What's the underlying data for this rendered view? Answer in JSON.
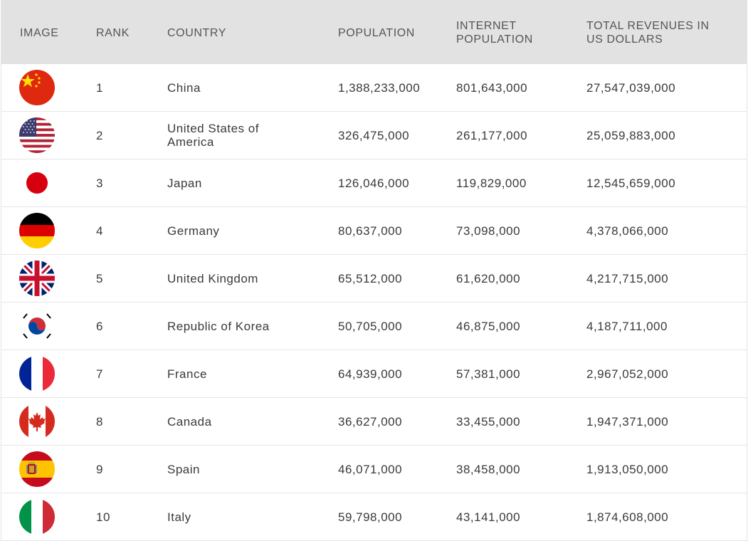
{
  "table": {
    "headers": {
      "image": "IMAGE",
      "rank": "RANK",
      "country": "COUNTRY",
      "population": "POPULATION",
      "internet_population": "INTERNET POPULATION",
      "total_revenues": "TOTAL REVENUES IN US DOLLARS"
    },
    "rows": [
      {
        "flag_icon": "china-flag-icon",
        "rank": "1",
        "country": "China",
        "population": "1,388,233,000",
        "internet_population": "801,643,000",
        "total_revenues": "27,547,039,000"
      },
      {
        "flag_icon": "usa-flag-icon",
        "rank": "2",
        "country": "United States of America",
        "population": "326,475,000",
        "internet_population": "261,177,000",
        "total_revenues": "25,059,883,000"
      },
      {
        "flag_icon": "japan-flag-icon",
        "rank": "3",
        "country": "Japan",
        "population": "126,046,000",
        "internet_population": "119,829,000",
        "total_revenues": "12,545,659,000"
      },
      {
        "flag_icon": "germany-flag-icon",
        "rank": "4",
        "country": "Germany",
        "population": "80,637,000",
        "internet_population": "73,098,000",
        "total_revenues": "4,378,066,000"
      },
      {
        "flag_icon": "uk-flag-icon",
        "rank": "5",
        "country": "United Kingdom",
        "population": "65,512,000",
        "internet_population": "61,620,000",
        "total_revenues": "4,217,715,000"
      },
      {
        "flag_icon": "korea-flag-icon",
        "rank": "6",
        "country": "Republic of Korea",
        "population": "50,705,000",
        "internet_population": "46,875,000",
        "total_revenues": "4,187,711,000"
      },
      {
        "flag_icon": "france-flag-icon",
        "rank": "7",
        "country": "France",
        "population": "64,939,000",
        "internet_population": "57,381,000",
        "total_revenues": "2,967,052,000"
      },
      {
        "flag_icon": "canada-flag-icon",
        "rank": "8",
        "country": "Canada",
        "population": "36,627,000",
        "internet_population": "33,455,000",
        "total_revenues": "1,947,371,000"
      },
      {
        "flag_icon": "spain-flag-icon",
        "rank": "9",
        "country": "Spain",
        "population": "46,071,000",
        "internet_population": "38,458,000",
        "total_revenues": "1,913,050,000"
      },
      {
        "flag_icon": "italy-flag-icon",
        "rank": "10",
        "country": "Italy",
        "population": "59,798,000",
        "internet_population": "43,141,000",
        "total_revenues": "1,874,608,000"
      }
    ]
  }
}
